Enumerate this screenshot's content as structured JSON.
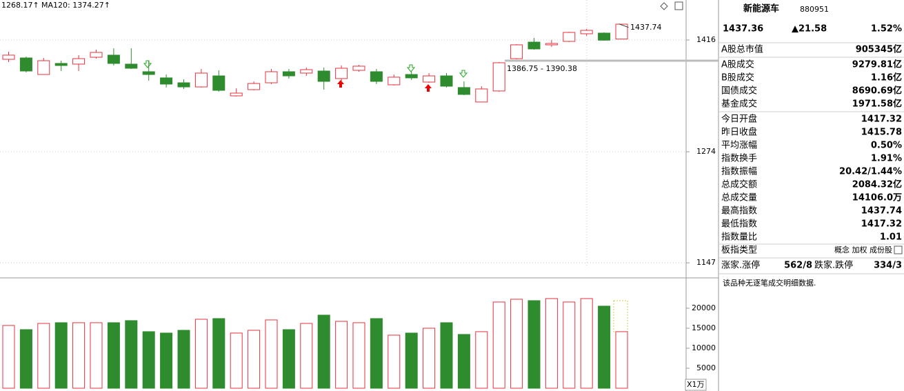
{
  "chart_data": [
    {
      "type": "candlestick",
      "legend": [
        {
          "name": "1268.17↑",
          "color": "#1a7a1a"
        },
        {
          "name": "MA120: 1374.27↑",
          "color": "#20a0a0"
        }
      ],
      "annotations": [
        "1437.74",
        "1386.75 - 1390.38"
      ],
      "open": [
        1390.4,
        1392.2,
        1370.6,
        1385.0,
        1384.1,
        1393.1,
        1395.9,
        1384.1,
        1374.2,
        1366.2,
        1359.9,
        1354.6,
        1368.8,
        1343.2,
        1351.1,
        1359.9,
        1374.2,
        1372.4,
        1375.1,
        1365.3,
        1376.0,
        1374.2,
        1357.3,
        1370.6,
        1360.8,
        1368.8,
        1353.8,
        1335.4,
        1349.4,
        1391.3,
        1413.2,
        1409.6,
        1414.2,
        1424.4,
        1425.3,
        1417.32
      ],
      "high": [
        1400.4,
        1394.0,
        1392.2,
        1388.6,
        1395.9,
        1403.2,
        1405.0,
        1405.0,
        1388.6,
        1370.6,
        1364.4,
        1377.8,
        1376.0,
        1352.9,
        1361.7,
        1377.8,
        1377.8,
        1379.6,
        1379.6,
        1382.3,
        1383.2,
        1377.8,
        1370.6,
        1374.2,
        1372.4,
        1372.4,
        1361.7,
        1355.5,
        1386.8,
        1410.5,
        1418.8,
        1416.0,
        1427.1,
        1430.8,
        1426.2,
        1437.74
      ],
      "low": [
        1386.8,
        1373.3,
        1370.6,
        1375.1,
        1375.1,
        1391.3,
        1382.3,
        1377.8,
        1362.6,
        1353.8,
        1352.0,
        1353.8,
        1348.5,
        1342.3,
        1350.2,
        1358.2,
        1365.3,
        1368.8,
        1351.1,
        1359.9,
        1374.2,
        1358.2,
        1356.4,
        1363.5,
        1359.9,
        1353.8,
        1344.1,
        1335.4,
        1348.5,
        1390.4,
        1403.2,
        1406.8,
        1413.2,
        1421.6,
        1415.1,
        1417.32
      ],
      "close": [
        1395.9,
        1375.1,
        1388.6,
        1382.3,
        1391.3,
        1399.5,
        1385.0,
        1378.7,
        1370.6,
        1358.2,
        1354.6,
        1372.4,
        1350.2,
        1346.7,
        1359.0,
        1374.2,
        1368.8,
        1376.9,
        1361.7,
        1378.7,
        1381.4,
        1361.7,
        1367.1,
        1366.2,
        1368.8,
        1355.5,
        1345.0,
        1352.0,
        1385.9,
        1409.6,
        1404.1,
        1411.4,
        1426.2,
        1429.0,
        1415.78,
        1437.36
      ],
      "up_color": "#e8313b",
      "down_color": "#2e8b2e",
      "log_scale": true,
      "grid": true,
      "ylim": [
        1133,
        1470.6
      ],
      "yticks": [
        1147,
        1274,
        1416
      ]
    },
    {
      "type": "bar",
      "unit_label": "X1万",
      "values": [
        15690,
        14650,
        16200,
        16380,
        16380,
        16380,
        16380,
        16900,
        14140,
        13790,
        14480,
        17240,
        17410,
        13790,
        14480,
        17070,
        14650,
        16200,
        18270,
        16720,
        16380,
        17410,
        13270,
        13790,
        15000,
        16380,
        13450,
        14140,
        21550,
        22240,
        21890,
        22410,
        21550,
        22410,
        20520,
        14140
      ],
      "up_color": "#e8313b",
      "down_color": "#2e8b2e",
      "ylim": [
        0,
        27400
      ],
      "yticks": [
        5000,
        10000,
        15000,
        20000
      ]
    }
  ],
  "panel": {
    "title": "新能源车",
    "code": "880951",
    "price": "1437.36",
    "change": "▲21.58",
    "change_pct": "1.52%",
    "rows": [
      {
        "label": "A股总市值",
        "value": "905345亿",
        "color": "#000000"
      },
      {
        "label": "A股成交",
        "value": "9279.81亿",
        "color": "#000000"
      },
      {
        "label": "B股成交",
        "value": "1.16亿",
        "color": "#000000"
      },
      {
        "label": "国债成交",
        "value": "8690.69亿",
        "color": "#000000"
      },
      {
        "label": "基金成交",
        "value": "1971.58亿",
        "color": "#000000"
      },
      {
        "label": "今日开盘",
        "value": "1417.32",
        "color": "#e8313b"
      },
      {
        "label": "昨日收盘",
        "value": "1415.78",
        "color": "#000000"
      },
      {
        "label": "平均涨幅",
        "value": "0.50%",
        "color": "#e8313b"
      },
      {
        "label": "指数换手",
        "value": "1.91%",
        "color": "#000000"
      },
      {
        "label": "指数振幅",
        "value": "20.42/1.44%",
        "color": "#000000"
      },
      {
        "label": "总成交额",
        "value": "2084.32亿",
        "color": "#000000"
      },
      {
        "label": "总成交量",
        "value": "14106.0万",
        "color": "#000000"
      },
      {
        "label": "最高指数",
        "value": "1437.74",
        "color": "#e8313b"
      },
      {
        "label": "最低指数",
        "value": "1417.32",
        "color": "#e8313b"
      },
      {
        "label": "指数量比",
        "value": "1.01",
        "color": "#e8313b"
      }
    ],
    "board_label": "板指类型",
    "board_value": "概念 加权 成份股",
    "rise_label": "涨家.涨停",
    "rise_value": "562/8",
    "fall_label": "跌家.跌停",
    "fall_value": "334/3",
    "note": "该品种无逐笔成交明细数据."
  }
}
